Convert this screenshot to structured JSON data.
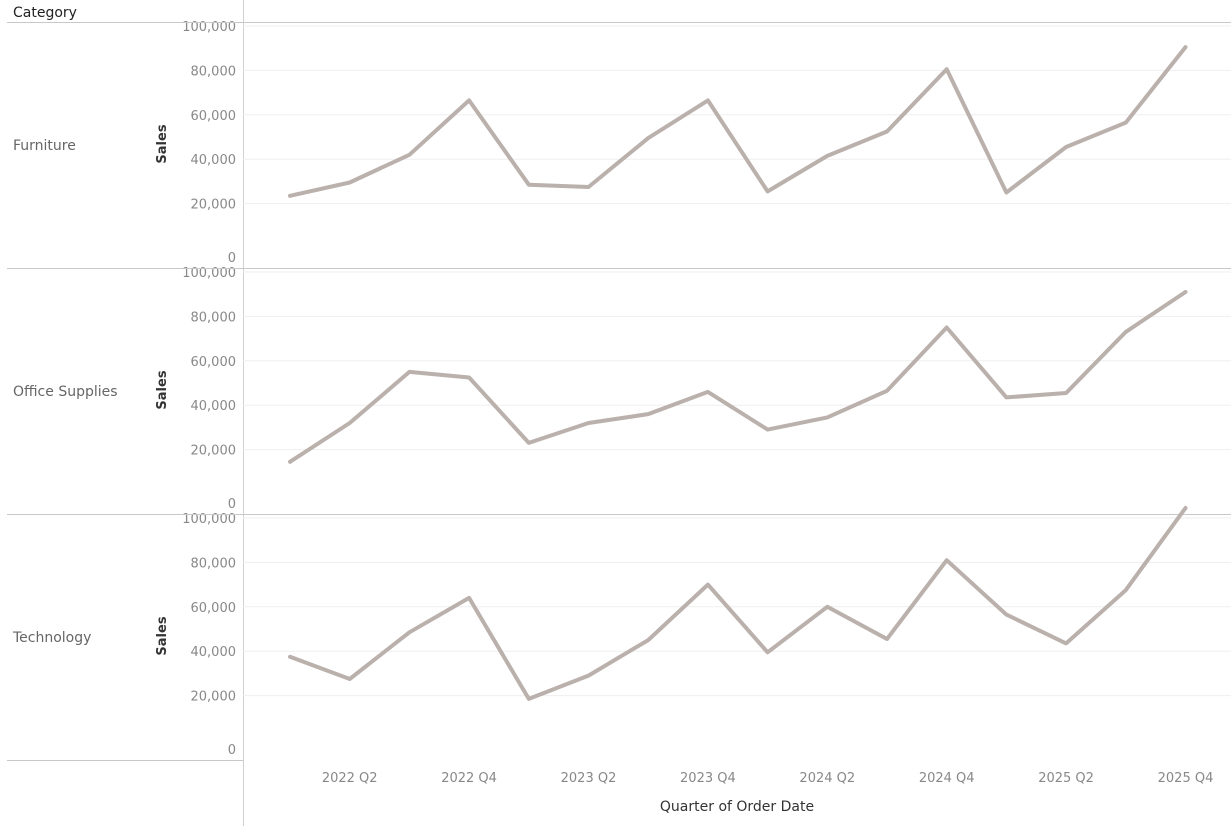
{
  "header": {
    "category_column_title": "Category"
  },
  "chart_data": {
    "type": "line",
    "xlabel": "Quarter of Order Date",
    "ylabel": "Sales",
    "ylim": [
      0,
      100000
    ],
    "y_ticks": [
      0,
      20000,
      40000,
      60000,
      80000,
      100000
    ],
    "y_tick_labels": [
      "0",
      "20,000",
      "40,000",
      "60,000",
      "80,000",
      "100,000"
    ],
    "x": [
      "2022 Q1",
      "2022 Q2",
      "2022 Q3",
      "2022 Q4",
      "2023 Q1",
      "2023 Q2",
      "2023 Q3",
      "2023 Q4",
      "2024 Q1",
      "2024 Q2",
      "2024 Q3",
      "2024 Q4",
      "2025 Q1",
      "2025 Q2",
      "2025 Q3",
      "2025 Q4"
    ],
    "x_tick_labels": [
      "2022 Q2",
      "2022 Q4",
      "2023 Q2",
      "2023 Q4",
      "2024 Q2",
      "2024 Q4",
      "2025 Q2",
      "2025 Q4"
    ],
    "line_color": "#bab0ac",
    "grid": true,
    "series": [
      {
        "name": "Furniture",
        "values": [
          23500,
          29500,
          42000,
          66500,
          28500,
          27500,
          49500,
          66500,
          25500,
          41500,
          52500,
          80500,
          25000,
          45500,
          56500,
          90500
        ]
      },
      {
        "name": "Office Supplies",
        "values": [
          14500,
          32000,
          55000,
          52500,
          23000,
          32000,
          36000,
          46000,
          29000,
          34500,
          46500,
          75000,
          43500,
          45500,
          73000,
          91000
        ]
      },
      {
        "name": "Technology",
        "values": [
          37500,
          27500,
          48500,
          64000,
          18500,
          29000,
          45000,
          70000,
          39500,
          60000,
          45500,
          81000,
          56500,
          43500,
          67500,
          104500
        ]
      }
    ]
  }
}
